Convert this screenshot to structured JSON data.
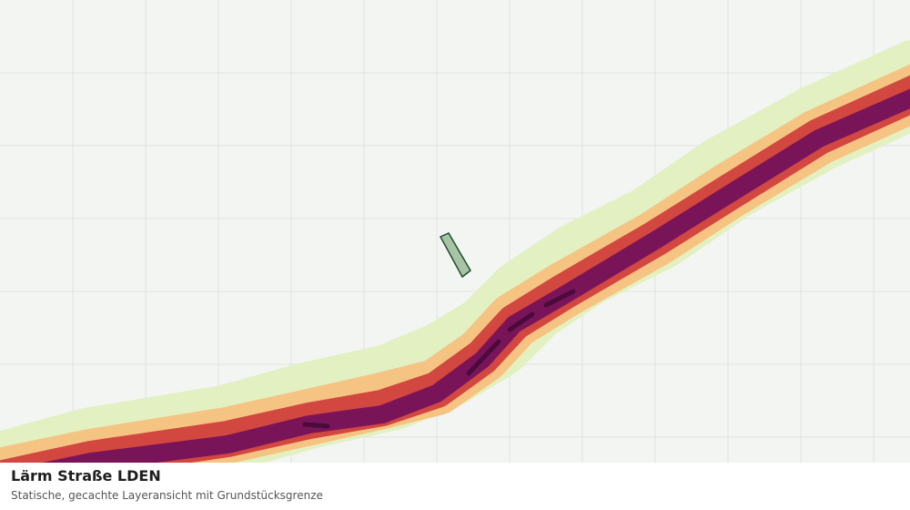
{
  "header": {
    "title": "Lärm Straße LDEN",
    "subtitle": "Statische, gecachte Layeransicht mit Grundstücksgrenze"
  }
}
